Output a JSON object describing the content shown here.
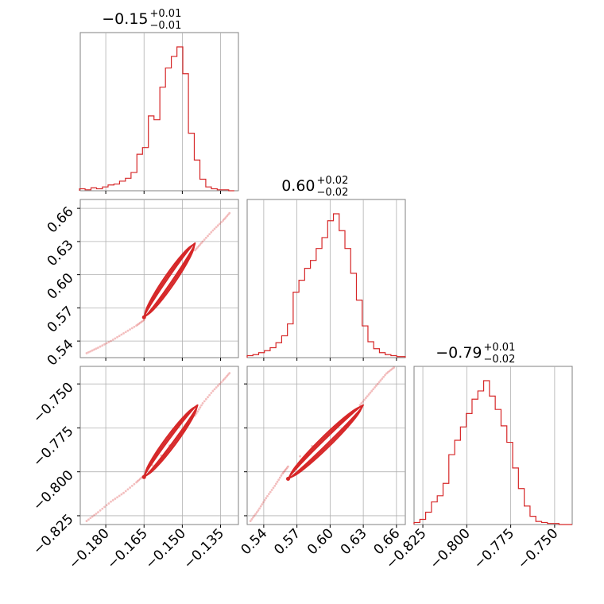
{
  "chart_data": {
    "type": "corner",
    "color": "#d62728",
    "grid": true,
    "parameters": [
      {
        "title_value": "−0.15",
        "title_plus": "+0.01",
        "title_minus": "−0.01",
        "range": [
          -0.19,
          -0.128
        ],
        "ticks": [
          -0.18,
          -0.165,
          -0.15,
          -0.135
        ],
        "tick_labels": [
          "−0.180",
          "−0.165",
          "−0.150",
          "−0.135"
        ],
        "median": -0.15,
        "hist": {
          "bins": [
            -0.1903,
            -0.1881,
            -0.1858,
            -0.1836,
            -0.1813,
            -0.1791,
            -0.1768,
            -0.1746,
            -0.1723,
            -0.1701,
            -0.1678,
            -0.1656,
            -0.1633,
            -0.1611,
            -0.1588,
            -0.1566,
            -0.1543,
            -0.1521,
            -0.1498,
            -0.1476,
            -0.1453,
            -0.1431,
            -0.1408,
            -0.1386,
            -0.1363,
            -0.1341,
            -0.1318,
            -0.1296
          ],
          "counts": [
            2,
            1,
            3,
            2,
            4,
            6,
            7,
            10,
            13,
            19,
            38,
            45,
            78,
            74,
            108,
            128,
            140,
            150,
            122,
            60,
            32,
            12,
            4,
            2,
            1,
            1,
            0
          ]
        }
      },
      {
        "title_value": "0.60",
        "title_plus": "+0.02",
        "title_minus": "−0.02",
        "range": [
          0.525,
          0.668
        ],
        "ticks": [
          0.54,
          0.57,
          0.6,
          0.63,
          0.66
        ],
        "tick_labels": [
          "0.54",
          "0.57",
          "0.60",
          "0.63",
          "0.66"
        ],
        "median": 0.6,
        "hist": {
          "bins": [
            0.525,
            0.5302,
            0.5354,
            0.5406,
            0.5458,
            0.551,
            0.5562,
            0.5614,
            0.5666,
            0.5718,
            0.577,
            0.5822,
            0.5874,
            0.5926,
            0.5978,
            0.603,
            0.6082,
            0.6134,
            0.6186,
            0.6238,
            0.629,
            0.6342,
            0.6394,
            0.6446,
            0.6498,
            0.655,
            0.6602,
            0.668
          ],
          "counts": [
            2,
            3,
            5,
            7,
            10,
            15,
            22,
            34,
            66,
            78,
            90,
            98,
            110,
            121,
            138,
            145,
            128,
            110,
            85,
            58,
            32,
            16,
            9,
            5,
            3,
            2,
            1
          ]
        }
      },
      {
        "title_value": "−0.79",
        "title_plus": "+0.01",
        "title_minus": "−0.02",
        "range": [
          -0.83,
          -0.74
        ],
        "ticks": [
          -0.825,
          -0.8,
          -0.775,
          -0.75
        ],
        "tick_labels": [
          "−0.825",
          "−0.800",
          "−0.775",
          "−0.750"
        ],
        "median": -0.79,
        "hist": {
          "bins": [
            -0.83,
            -0.8267,
            -0.8234,
            -0.8201,
            -0.8168,
            -0.8135,
            -0.8102,
            -0.8069,
            -0.8036,
            -0.8003,
            -0.797,
            -0.7937,
            -0.7904,
            -0.7871,
            -0.7838,
            -0.7805,
            -0.7772,
            -0.7739,
            -0.7706,
            -0.7673,
            -0.764,
            -0.7607,
            -0.7574,
            -0.7541,
            -0.7508,
            -0.7475,
            -0.7442,
            -0.74
          ],
          "counts": [
            2,
            5,
            12,
            22,
            28,
            40,
            68,
            82,
            95,
            108,
            122,
            130,
            140,
            125,
            112,
            96,
            80,
            55,
            35,
            18,
            8,
            3,
            2,
            1,
            1,
            0,
            0
          ]
        }
      }
    ],
    "pairs": [
      {
        "row": 1,
        "col": 0,
        "tail": [
          [
            -0.1875,
            0.529
          ],
          [
            -0.183,
            0.534
          ],
          [
            -0.178,
            0.54
          ],
          [
            -0.173,
            0.547
          ],
          [
            -0.168,
            0.554
          ],
          [
            -0.165,
            0.559
          ],
          [
            -0.145,
            0.622
          ],
          [
            -0.142,
            0.63
          ],
          [
            -0.138,
            0.64
          ],
          [
            -0.134,
            0.649
          ],
          [
            -0.131,
            0.657
          ]
        ],
        "core": [
          -0.165,
          0.5615,
          -0.145,
          0.6285
        ]
      },
      {
        "row": 2,
        "col": 0,
        "tail": [
          [
            -0.1875,
            -0.828
          ],
          [
            -0.183,
            -0.823
          ],
          [
            -0.178,
            -0.817
          ],
          [
            -0.173,
            -0.812
          ],
          [
            -0.168,
            -0.806
          ],
          [
            -0.165,
            -0.802
          ],
          [
            -0.145,
            -0.768
          ],
          [
            -0.142,
            -0.761
          ],
          [
            -0.138,
            -0.754
          ],
          [
            -0.134,
            -0.748
          ],
          [
            -0.131,
            -0.743
          ]
        ],
        "core": [
          -0.165,
          -0.803,
          -0.144,
          -0.762
        ]
      },
      {
        "row": 2,
        "col": 1,
        "tail": [
          [
            0.528,
            -0.828
          ],
          [
            0.535,
            -0.822
          ],
          [
            0.542,
            -0.815
          ],
          [
            0.55,
            -0.808
          ],
          [
            0.557,
            -0.801
          ],
          [
            0.562,
            -0.797
          ],
          [
            0.627,
            -0.762
          ],
          [
            0.635,
            -0.756
          ],
          [
            0.643,
            -0.75
          ],
          [
            0.651,
            -0.744
          ],
          [
            0.659,
            -0.74
          ]
        ],
        "core": [
          0.562,
          -0.804,
          0.63,
          -0.762
        ]
      }
    ]
  }
}
